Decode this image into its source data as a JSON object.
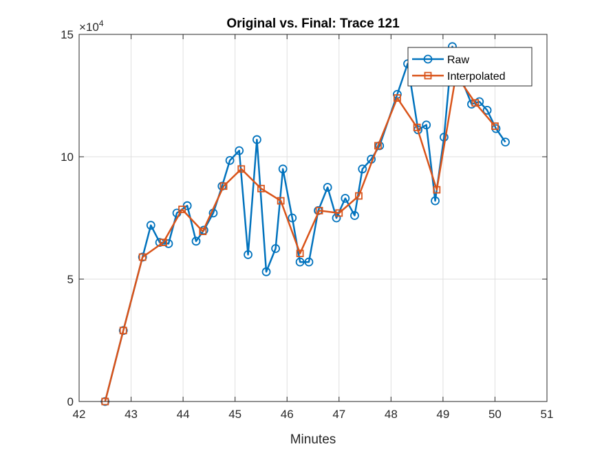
{
  "chart_data": {
    "type": "line",
    "title": "Original vs. Final: Trace 121",
    "xlabel": "Minutes",
    "ylabel": "",
    "xlim": [
      42,
      51
    ],
    "ylim": [
      0,
      150000
    ],
    "x_ticks": [
      42,
      43,
      44,
      45,
      46,
      47,
      48,
      49,
      50,
      51
    ],
    "y_ticks": [
      0,
      50000,
      100000,
      150000
    ],
    "y_tick_labels": [
      "0",
      "5",
      "10",
      "15"
    ],
    "y_exponent_base": "×10",
    "y_exponent_power": "4",
    "grid": true,
    "legend_position": "top-right",
    "series": [
      {
        "name": "Raw",
        "color": "#0072BD",
        "marker": "circle",
        "x": [
          42.5,
          42.85,
          43.22,
          43.38,
          43.55,
          43.72,
          43.88,
          44.08,
          44.25,
          44.4,
          44.58,
          44.75,
          44.9,
          45.08,
          45.25,
          45.42,
          45.6,
          45.78,
          45.92,
          46.1,
          46.25,
          46.42,
          46.6,
          46.78,
          46.95,
          47.12,
          47.3,
          47.45,
          47.62,
          47.78,
          48.12,
          48.32,
          48.52,
          48.68,
          48.85,
          49.02,
          49.18,
          49.35,
          49.55,
          49.7,
          49.85,
          50.02,
          50.2
        ],
        "y": [
          0,
          29000,
          59000,
          72000,
          65000,
          64500,
          77000,
          80000,
          65500,
          70000,
          77000,
          88000,
          98500,
          102500,
          60000,
          107000,
          53000,
          62500,
          95000,
          75000,
          57000,
          57000,
          78000,
          87500,
          75000,
          83000,
          76000,
          95000,
          99000,
          104500,
          125500,
          138000,
          111000,
          113000,
          82000,
          108000,
          145000,
          132000,
          121500,
          122500,
          119000,
          111500,
          106000
        ]
      },
      {
        "name": "Interpolated",
        "color": "#D95319",
        "marker": "square",
        "x": [
          42.5,
          42.85,
          43.22,
          43.62,
          43.98,
          44.38,
          44.78,
          45.12,
          45.5,
          45.88,
          46.25,
          46.62,
          47.0,
          47.38,
          47.75,
          48.12,
          48.5,
          48.88,
          49.25,
          49.62,
          50.0
        ],
        "y": [
          0,
          29000,
          59000,
          65000,
          78500,
          69500,
          88000,
          95000,
          87000,
          82000,
          60500,
          78000,
          77000,
          84000,
          104500,
          124000,
          112000,
          86500,
          133500,
          122000,
          112500
        ]
      }
    ]
  }
}
